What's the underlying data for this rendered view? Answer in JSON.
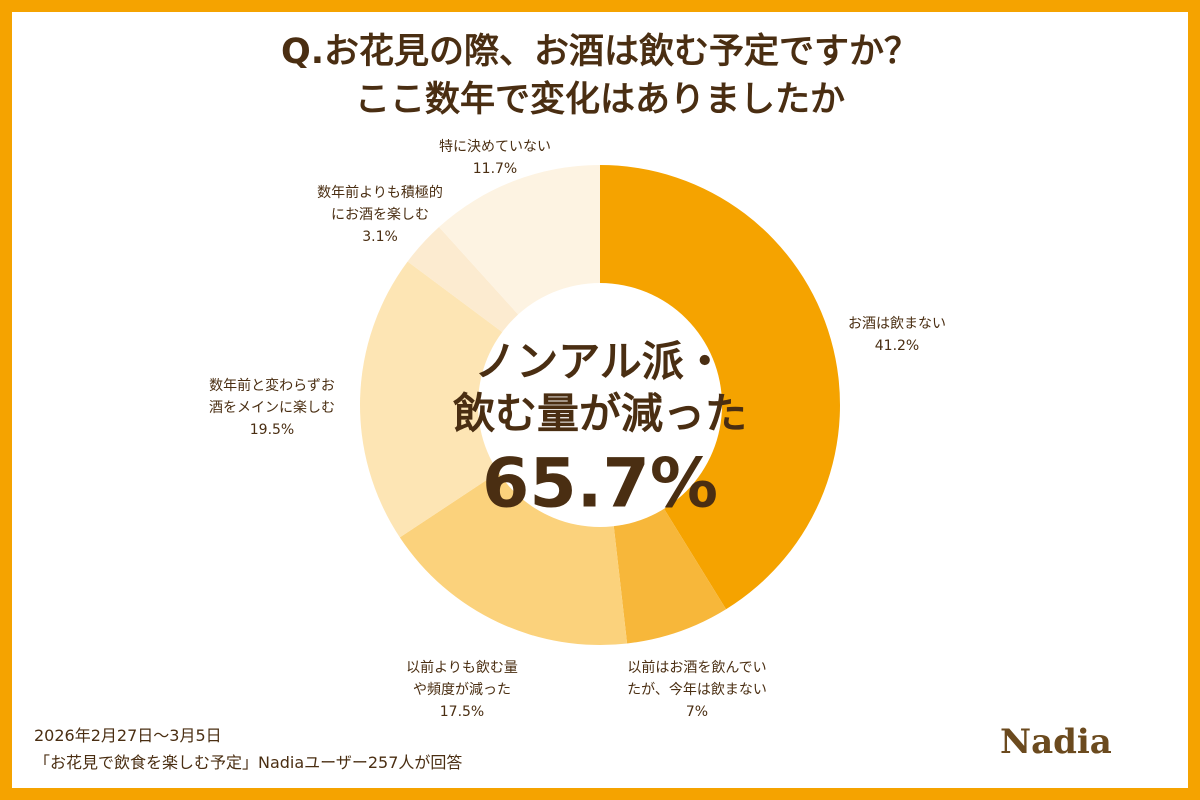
{
  "chart_data": {
    "type": "donut",
    "title": "Q.お花見の際、お酒は飲む予定ですか？\nここ数年で変化はありましたか",
    "categories": [
      "お酒は飲まない",
      "以前はお酒を飲んでい\nたが、今年は飲まない",
      "以前よりも飲む量\nや頻度が減った",
      "数年前と変わらずお\n酒をメインに楽しむ",
      "数年前よりも積極的\nにお酒を楽しむ",
      "特に決めていない"
    ],
    "values": [
      41.2,
      7,
      17.5,
      19.5,
      3.1,
      11.7
    ],
    "value_labels": [
      "41.2%",
      "7%",
      "17.5%",
      "19.5%",
      "3.1%",
      "11.7%"
    ],
    "colors": [
      "#f5a300",
      "#f7b73a",
      "#fbd27c",
      "#fde5b4",
      "#fcebd0",
      "#fdf3e2"
    ],
    "center_text": "ノンアル派・\n飲む量が減った",
    "center_value": "65.7%",
    "footnote": "2026年2月27日～3月5日\n「お花見で飲食を楽しむ予定」Nadiaユーザー257人が回答",
    "logo": "Nadia"
  }
}
